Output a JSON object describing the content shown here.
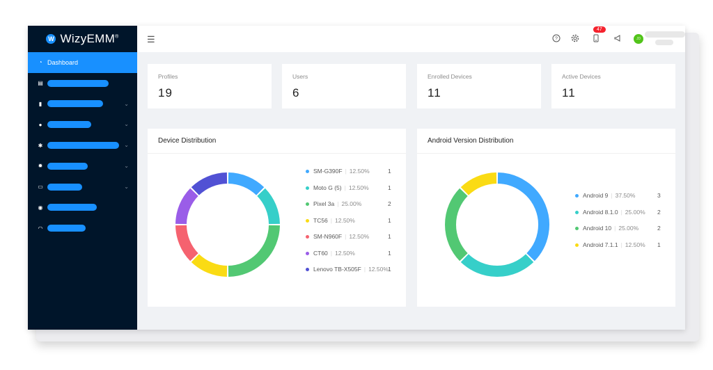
{
  "app": {
    "logo_letter": "W",
    "name": "WizyEMM",
    "trademark": "®"
  },
  "sidebar": {
    "items": [
      {
        "label": "Dashboard",
        "active": true,
        "icon": "dashboard-icon",
        "chevron": false
      },
      {
        "label": "",
        "icon": "document-icon",
        "chevron": false,
        "bar_width": 88
      },
      {
        "label": "",
        "icon": "device-icon",
        "chevron": true,
        "bar_width": 80
      },
      {
        "label": "",
        "icon": "location-icon",
        "chevron": true,
        "bar_width": 63
      },
      {
        "label": "",
        "icon": "android-icon",
        "chevron": true,
        "bar_width": 103
      },
      {
        "label": "",
        "icon": "gear-icon",
        "chevron": true,
        "bar_width": 58
      },
      {
        "label": "",
        "icon": "message-icon",
        "chevron": true,
        "bar_width": 50
      },
      {
        "label": "",
        "icon": "circle-icon",
        "chevron": false,
        "bar_width": 71
      },
      {
        "label": "",
        "icon": "headset-icon",
        "chevron": false,
        "bar_width": 55
      }
    ]
  },
  "header": {
    "notification_count": "47",
    "avatar_initials": "JD",
    "icons": [
      "menu-fold-icon",
      "help-icon",
      "gear-icon",
      "device-icon",
      "megaphone-icon"
    ]
  },
  "stats": [
    {
      "label": "Profiles",
      "value": "19"
    },
    {
      "label": "Users",
      "value": "6"
    },
    {
      "label": "Enrolled Devices",
      "value": "11"
    },
    {
      "label": "Active Devices",
      "value": "11"
    }
  ],
  "device_distribution": {
    "title": "Device Distribution",
    "chart_data": {
      "type": "pie",
      "donut": true,
      "series": [
        {
          "name": "SM-G390F",
          "percent": "12.50%",
          "value": 1,
          "color": "#40a9ff"
        },
        {
          "name": "Moto G (5)",
          "percent": "12.50%",
          "value": 1,
          "color": "#36cfc9"
        },
        {
          "name": "Pixel 3a",
          "percent": "25.00%",
          "value": 2,
          "color": "#52c873"
        },
        {
          "name": "TC56",
          "percent": "12.50%",
          "value": 1,
          "color": "#fadb14"
        },
        {
          "name": "SM-N960F",
          "percent": "12.50%",
          "value": 1,
          "color": "#f5626f"
        },
        {
          "name": "CT60",
          "percent": "12.50%",
          "value": 1,
          "color": "#9a5de8"
        },
        {
          "name": "Lenovo TB-X505F",
          "percent": "12.50%",
          "value": 1,
          "color": "#5151d4"
        }
      ]
    }
  },
  "android_distribution": {
    "title": "Android Version Distribution",
    "chart_data": {
      "type": "pie",
      "donut": true,
      "series": [
        {
          "name": "Android 9",
          "percent": "37.50%",
          "value": 3,
          "color": "#40a9ff"
        },
        {
          "name": "Android 8.1.0",
          "percent": "25.00%",
          "value": 2,
          "color": "#36cfc9"
        },
        {
          "name": "Android 10",
          "percent": "25.00%",
          "value": 2,
          "color": "#52c873"
        },
        {
          "name": "Android 7.1.1",
          "percent": "12.50%",
          "value": 1,
          "color": "#fadb14"
        }
      ]
    }
  }
}
